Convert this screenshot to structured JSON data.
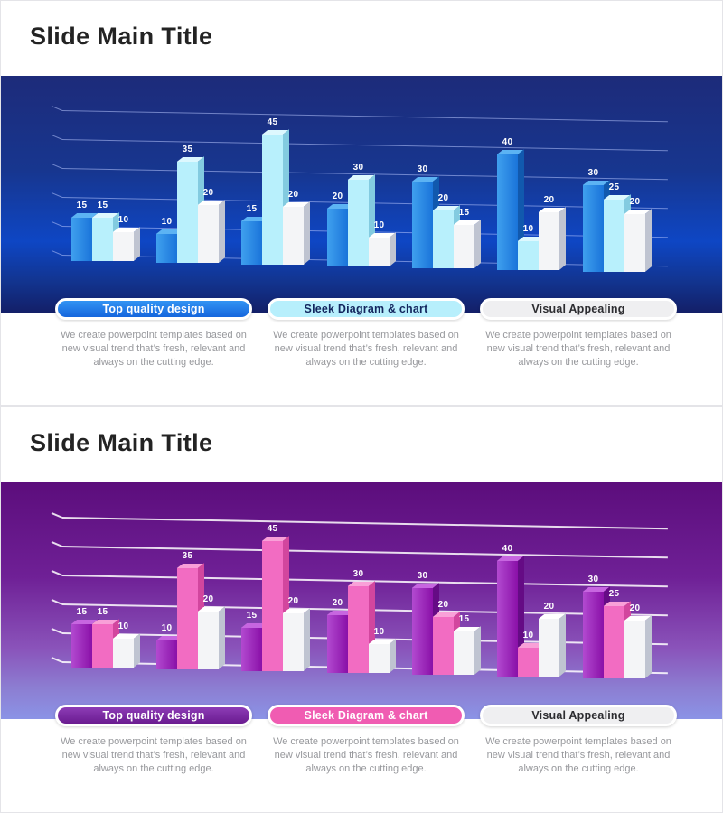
{
  "slides": [
    {
      "title": "Slide Main Title",
      "features": [
        {
          "label": "Top quality design",
          "description": "We create powerpoint templates based on new visual trend that’s fresh, relevant and always on the cutting edge."
        },
        {
          "label": "Sleek Diagram & chart",
          "description": "We create powerpoint templates based on new visual trend that’s fresh, relevant and always on the cutting edge."
        },
        {
          "label": "Visual Appealing",
          "description": "We create powerpoint templates based on new visual trend that’s fresh, relevant and always on the cutting edge."
        }
      ],
      "theme": {
        "title_color": "#232323",
        "band_g0": "#1d2b7a",
        "band_g1": "#17368f",
        "band_g2": "#0e46c4",
        "band_g3": "#12348f",
        "band_g4": "#131f68",
        "grid_color": "rgba(185,200,255,0.55)",
        "s1_left": "#3fa0ee",
        "s1_right": "#1a74da",
        "s1_side": "#1159ae",
        "s1_top": "#5cb3f3",
        "s2_face": "#b8f0fc",
        "s2_side": "#83cbe0",
        "s2_top": "#ddf8fe",
        "s3_face": "#f4f5f7",
        "s3_side": "#bfc4d1",
        "s3_top": "#ffffff",
        "value_color": "#ffffff",
        "pill_border": "#ffffff",
        "pill1_a": "#3293f3",
        "pill1_b": "#1566dd",
        "pill1_text": "#ffffff",
        "pill2_bg": "#b7effc",
        "pill2_text": "#13265e",
        "pill3_bg": "#efeff1",
        "pill3_text": "#2c2c30",
        "desc_color": "#97989c"
      }
    },
    {
      "title": "Slide Main Title",
      "features": [
        {
          "label": "Top quality design",
          "description": "We create powerpoint templates based on new visual trend that’s fresh, relevant and always on the cutting edge."
        },
        {
          "label": "Sleek Diagram & chart",
          "description": "We create powerpoint templates based on new visual trend that’s fresh, relevant and always on the cutting edge."
        },
        {
          "label": "Visual Appealing",
          "description": "We create powerpoint templates based on new visual trend that’s fresh, relevant and always on the cutting edge."
        }
      ],
      "theme": {
        "title_color": "#232323",
        "band_g0": "#5c0d7c",
        "band_g1": "#6f2096",
        "band_g2": "#8a53ba",
        "band_g3": "#8c7ed2",
        "band_g4": "#8b93e6",
        "grid_color": "rgba(255,255,255,0.85)",
        "s1_left": "#b24ad0",
        "s1_right": "#8a10a8",
        "s1_side": "#650b85",
        "s1_top": "#c766e0",
        "s2_face": "#f26cc2",
        "s2_side": "#d2469e",
        "s2_top": "#f9a0d8",
        "s3_face": "#f4f5f7",
        "s3_side": "#bfc4d1",
        "s3_top": "#ffffff",
        "value_color": "#ffffff",
        "pill_border": "#ffffff",
        "pill1_a": "#8d3cb6",
        "pill1_b": "#6a1b90",
        "pill1_text": "#ffffff",
        "pill2_bg": "#f05cb2",
        "pill2_text": "#ffffff",
        "pill3_bg": "#efeff1",
        "pill3_text": "#2c2c30",
        "desc_color": "#97989c"
      }
    }
  ],
  "chart_data": [
    {
      "type": "bar",
      "style": "3d-column",
      "n_groups": 7,
      "series": [
        {
          "name": "series-1",
          "color": "#2f8ce6",
          "values": [
            15,
            10,
            15,
            20,
            30,
            40,
            30
          ]
        },
        {
          "name": "series-2",
          "color": "#b8f0fc",
          "values": [
            15,
            35,
            45,
            30,
            20,
            10,
            25
          ]
        },
        {
          "name": "series-3",
          "color": "#f4f5f7",
          "values": [
            10,
            20,
            20,
            10,
            15,
            20,
            20
          ]
        }
      ],
      "data_labels": true,
      "ylim": [
        0,
        50
      ],
      "gridline_values": [
        0,
        10,
        20,
        30,
        40,
        50
      ],
      "legend": false
    },
    {
      "type": "bar",
      "style": "3d-column",
      "n_groups": 7,
      "series": [
        {
          "name": "series-1",
          "color": "#9c27b8",
          "values": [
            15,
            10,
            15,
            20,
            30,
            40,
            30
          ]
        },
        {
          "name": "series-2",
          "color": "#f26cc2",
          "values": [
            15,
            35,
            45,
            30,
            20,
            10,
            25
          ]
        },
        {
          "name": "series-3",
          "color": "#f4f5f7",
          "values": [
            10,
            20,
            20,
            10,
            15,
            20,
            20
          ]
        }
      ],
      "data_labels": true,
      "ylim": [
        0,
        50
      ],
      "gridline_values": [
        0,
        10,
        20,
        30,
        40,
        50
      ],
      "legend": false
    }
  ]
}
